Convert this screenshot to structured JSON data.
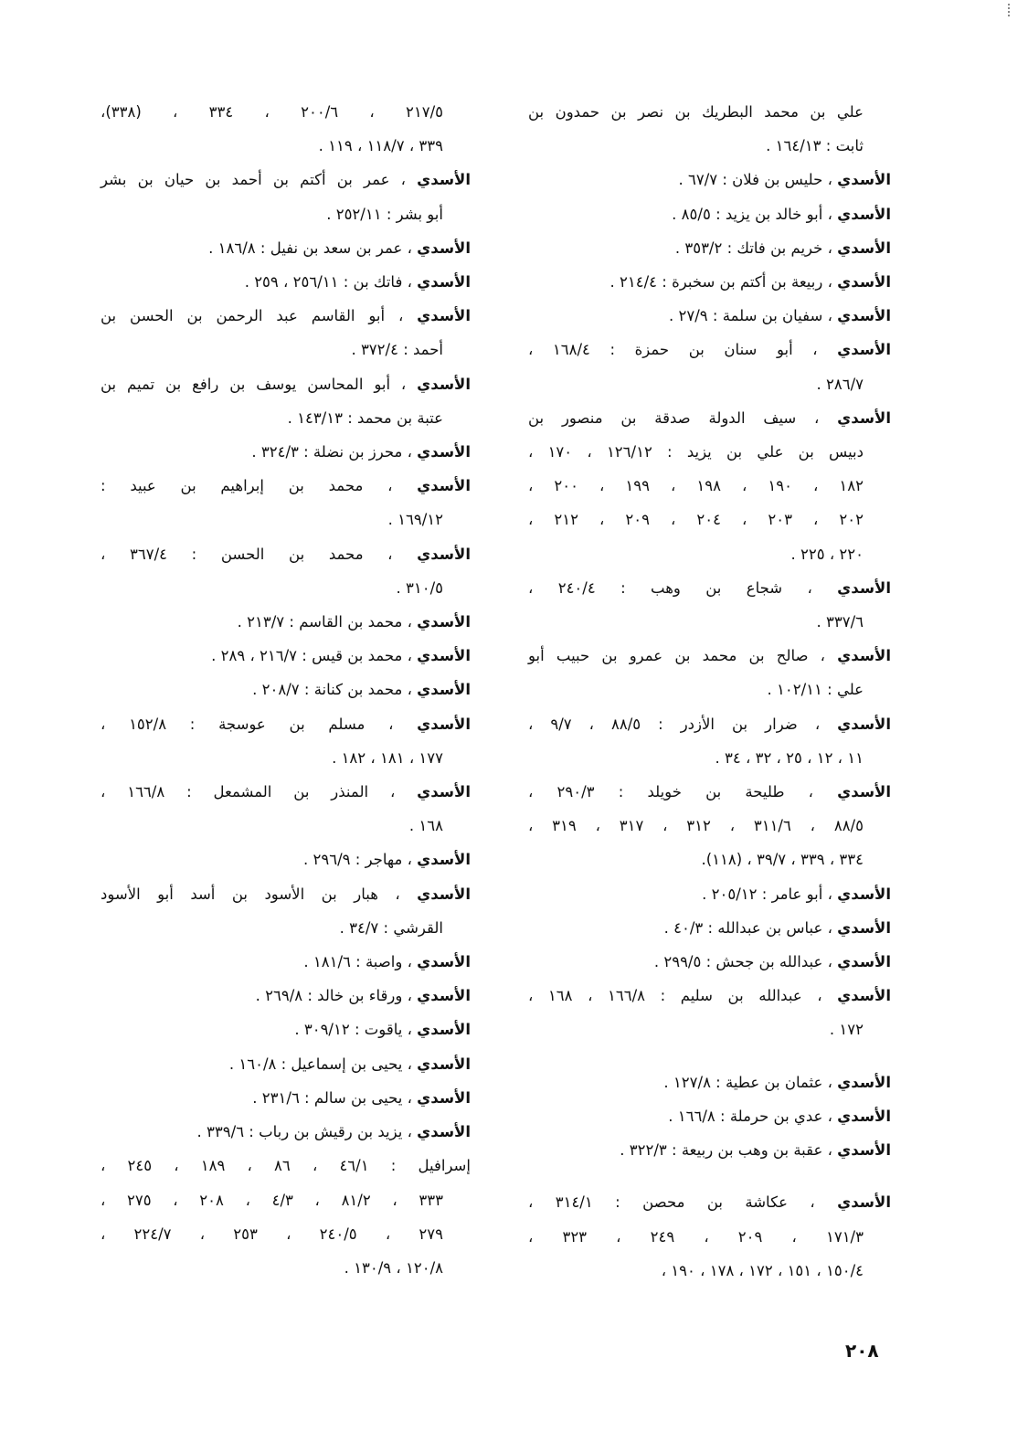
{
  "head_label": "الأسدي",
  "columns": {
    "right": [
      {
        "head": false,
        "continuation": true,
        "lines": [
          "علي بن محمد البطريك بن نصر بن حمدون بن",
          "ثابت : ١٦٤/١٣ ."
        ]
      },
      {
        "head": true,
        "lines": [
          "حليس بن فلان : ٦٧/٧ ."
        ]
      },
      {
        "head": true,
        "lines": [
          "أبو خالد بن يزيد : ٨٥/٥ ."
        ]
      },
      {
        "head": true,
        "lines": [
          "خريم بن فاتك : ٣٥٣/٢ ."
        ]
      },
      {
        "head": true,
        "lines": [
          "ربيعة بن أكتم بن سخبرة : ٢١٤/٤ ."
        ]
      },
      {
        "head": true,
        "lines": [
          "سفيان بن سلمة : ٢٧/٩ ."
        ]
      },
      {
        "head": true,
        "lines": [
          "أبو سنان بن حمزة : ١٦٨/٤ ،",
          "٢٨٦/٧ ."
        ]
      },
      {
        "head": true,
        "lines": [
          "سيف الدولة صدقة بن منصور بن",
          "دبيس بن علي بن يزيد : ١٢٦/١٢ ، ١٧٠ ،",
          "١٨٢ ، ١٩٠ ، ١٩٨ ، ١٩٩ ، ٢٠٠ ،",
          "٢٠٢ ، ٢٠٣ ، ٢٠٤ ، ٢٠٩ ، ٢١٢ ،",
          "٢٢٠ ، ٢٢٥ ."
        ]
      },
      {
        "head": true,
        "lines": [
          "شجاع بن وهب : ٢٤٠/٤ ،",
          "٣٣٧/٦ ."
        ]
      },
      {
        "head": true,
        "lines": [
          "صالح بن محمد بن عمرو بن حبيب أبو",
          "علي : ١٠٢/١١ ."
        ]
      },
      {
        "head": true,
        "lines": [
          "ضرار بن الأزدر : ٨٨/٥ ، ٩/٧ ،",
          "١١ ، ١٢ ، ٢٥ ، ٣٢ ، ٣٤ ."
        ]
      },
      {
        "head": true,
        "lines": [
          "طليحة بن خويلد : ٢٩٠/٣ ،",
          "٨٨/٥ ، ٣١١/٦ ، ٣١٢ ، ٣١٧ ، ٣١٩ ،",
          "٣٣٤ ، ٣٣٩ ، ٣٩/٧ ، (١١٨)."
        ]
      },
      {
        "head": true,
        "lines": [
          "أبو عامر : ٢٠٥/١٢ ."
        ]
      },
      {
        "head": true,
        "lines": [
          "عباس بن عبدالله : ٤٠/٣ ."
        ]
      },
      {
        "head": true,
        "lines": [
          "عبدالله بن جحش : ٢٩٩/٥ ."
        ]
      },
      {
        "head": true,
        "lines": [
          "عبدالله بن سليم : ١٦٦/٨ ، ١٦٨ ،",
          "١٧٢ ."
        ]
      },
      {
        "head": true,
        "gap": true,
        "lines": [
          "عثمان بن عطية : ١٢٧/٨ ."
        ]
      },
      {
        "head": true,
        "lines": [
          "عدي بن حرملة : ١٦٦/٨ ."
        ]
      },
      {
        "head": true,
        "lines": [
          "عقبة بن وهب بن ربيعة : ٣٢٢/٣ ."
        ]
      },
      {
        "head": true,
        "gap": true,
        "lines": [
          "عكاشة بن محصن : ٣١٤/١ ،",
          "١٧١/٣ ، ٢٠٩ ، ٢٤٩ ، ٣٢٣ ،",
          "١٥٠/٤ ، ١٥١ ، ١٧٢ ، ١٧٨ ، ١٩٠ ،"
        ]
      }
    ],
    "left": [
      {
        "head": false,
        "continuation": true,
        "lines": [
          "٢١٧/٥ ، ٢٠٠/٦ ، ٣٣٤ ، (٣٣٨)،",
          "٣٣٩ ، ١١٨/٧ ، ١١٩ ."
        ]
      },
      {
        "head": true,
        "lines": [
          "عمر بن أكتم بن أحمد بن حيان بن بشر",
          "أبو بشر : ٢٥٢/١١ ."
        ]
      },
      {
        "head": true,
        "lines": [
          "عمر بن سعد بن نفيل : ١٨٦/٨ ."
        ]
      },
      {
        "head": true,
        "lines": [
          "فاتك بن : ٢٥٦/١١ ، ٢٥٩ ."
        ]
      },
      {
        "head": true,
        "lines": [
          "أبو القاسم عبد الرحمن بن الحسن بن",
          "أحمد : ٣٧٢/٤ ."
        ]
      },
      {
        "head": true,
        "lines": [
          "أبو المحاسن يوسف بن رافع بن تميم بن",
          "عتبة بن محمد : ١٤٣/١٣ ."
        ]
      },
      {
        "head": true,
        "lines": [
          "محرز بن نضلة : ٣٢٤/٣ ."
        ]
      },
      {
        "head": true,
        "lines": [
          "محمد بن إبراهيم بن عبيد :",
          "١٦٩/١٢ ."
        ]
      },
      {
        "head": true,
        "lines": [
          "محمد بن الحسن : ٣٦٧/٤ ،",
          "٣١٠/٥ ."
        ]
      },
      {
        "head": true,
        "lines": [
          "محمد بن القاسم : ٢١٣/٧ ."
        ]
      },
      {
        "head": true,
        "lines": [
          "محمد بن قيس : ٢١٦/٧ ، ٢٨٩ ."
        ]
      },
      {
        "head": true,
        "lines": [
          "محمد بن كنانة : ٢٠٨/٧ ."
        ]
      },
      {
        "head": true,
        "lines": [
          "مسلم بن عوسجة : ١٥٢/٨ ،",
          "١٧٧ ، ١٨١ ، ١٨٢ ."
        ]
      },
      {
        "head": true,
        "lines": [
          "المنذر بن المشمعل : ١٦٦/٨ ،",
          "١٦٨ ."
        ]
      },
      {
        "head": true,
        "lines": [
          "مهاجر : ٢٩٦/٩ ."
        ]
      },
      {
        "head": true,
        "lines": [
          "هبار بن الأسود بن أسد أبو الأسود",
          "القرشي : ٣٤/٧ ."
        ]
      },
      {
        "head": true,
        "lines": [
          "واصبة : ١٨١/٦ ."
        ]
      },
      {
        "head": true,
        "lines": [
          "ورقاء بن خالد : ٢٦٩/٨ ."
        ]
      },
      {
        "head": true,
        "lines": [
          "ياقوت : ٣٠٩/١٢ ."
        ]
      },
      {
        "head": true,
        "lines": [
          "يحيى بن إسماعيل : ١٦٠/٨ ."
        ]
      },
      {
        "head": true,
        "lines": [
          "يحيى بن سالم : ٢٣١/٦ ."
        ]
      },
      {
        "head": true,
        "lines": [
          "يزيد بن رقيش بن رباب : ٣٣٩/٦ ."
        ]
      },
      {
        "head": false,
        "lines": [
          "إسرافيل : ٤٦/١ ، ٨٦ ، ١٨٩ ، ٢٤٥ ،",
          "٣٣٣ ، ٨١/٢ ، ٤/٣ ، ٢٠٨ ، ٢٧٥ ،",
          "٢٧٩ ، ٢٤٠/٥ ، ٢٥٣ ، ٢٢٤/٧ ،",
          "١٢٠/٨ ، ١٣٠/٩ ."
        ]
      }
    ]
  },
  "page_number": "٢٠٨"
}
